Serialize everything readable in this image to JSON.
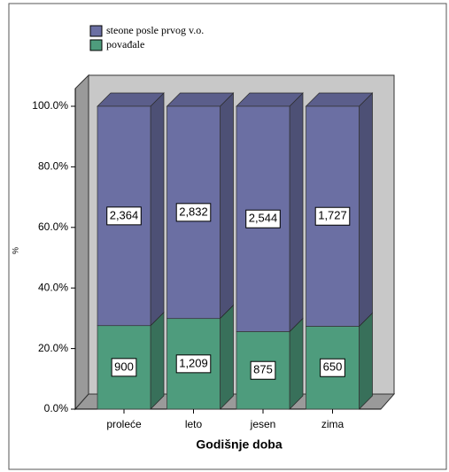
{
  "chart_data": {
    "type": "bar",
    "stacking": "percent",
    "categories": [
      "proleće",
      "leto",
      "jesen",
      "zima"
    ],
    "series": [
      {
        "name": "steone posle prvog v.o.",
        "color": "#6b6fa3",
        "values": [
          2364,
          2832,
          2544,
          1727
        ],
        "value_labels": [
          "2,364",
          "2,832",
          "2,544",
          "1,727"
        ]
      },
      {
        "name": "povađale",
        "color": "#4e9c7d",
        "values": [
          900,
          1209,
          875,
          650
        ],
        "value_labels": [
          "900",
          "1,209",
          "875",
          "650"
        ]
      }
    ],
    "x_label": "Godišnje doba",
    "y_label": "%",
    "ylim": [
      0,
      100
    ],
    "yticks": [
      {
        "value": 0,
        "label": "0.0%"
      },
      {
        "value": 20,
        "label": "20.0%"
      },
      {
        "value": 40,
        "label": "40.0%"
      },
      {
        "value": 60,
        "label": "60.0%"
      },
      {
        "value": 80,
        "label": "80.0%"
      },
      {
        "value": 100,
        "label": "100.0%"
      }
    ],
    "legend": "top-left"
  }
}
